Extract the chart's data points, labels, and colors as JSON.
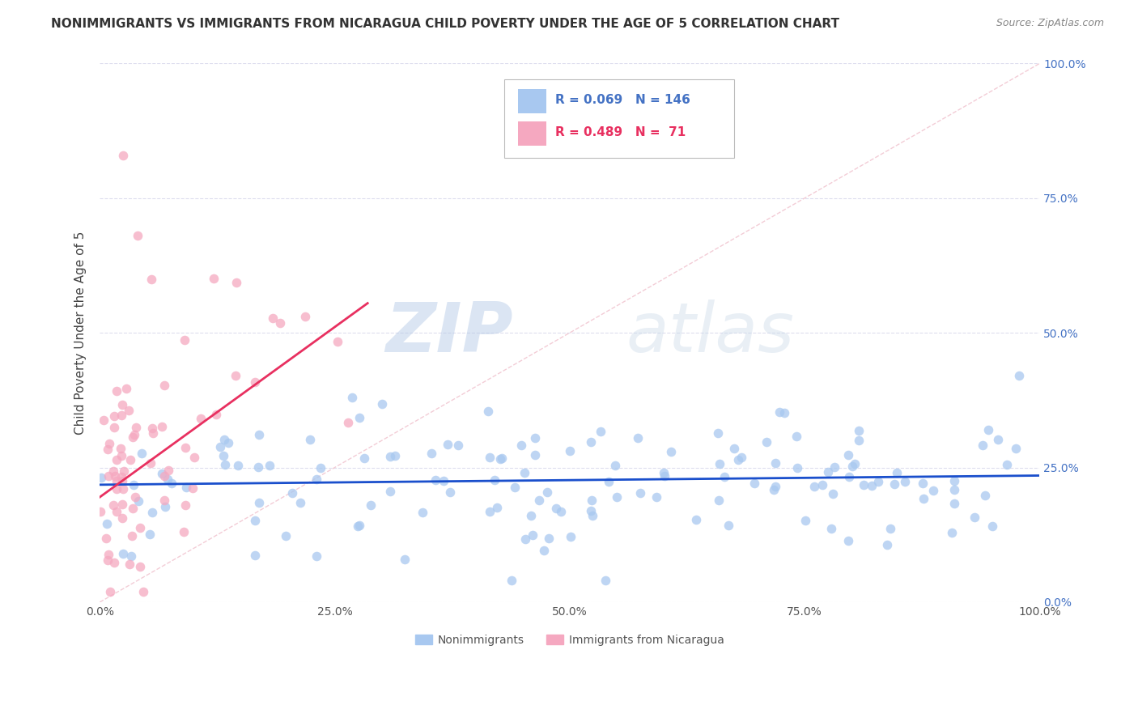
{
  "title": "NONIMMIGRANTS VS IMMIGRANTS FROM NICARAGUA CHILD POVERTY UNDER THE AGE OF 5 CORRELATION CHART",
  "source": "Source: ZipAtlas.com",
  "ylabel": "Child Poverty Under the Age of 5",
  "xlim": [
    0,
    1
  ],
  "ylim": [
    0,
    1
  ],
  "xticks": [
    0.0,
    0.25,
    0.5,
    0.75,
    1.0
  ],
  "yticks": [
    0.0,
    0.25,
    0.5,
    0.75,
    1.0
  ],
  "xtick_labels": [
    "0.0%",
    "25.0%",
    "50.0%",
    "75.0%",
    "100.0%"
  ],
  "ytick_labels": [
    "0.0%",
    "25.0%",
    "50.0%",
    "75.0%",
    "100.0%"
  ],
  "nonimmigrant_color": "#a8c8f0",
  "immigrant_color": "#f5a8c0",
  "trend_blue": "#1a4fcc",
  "trend_pink": "#e83060",
  "legend_R_blue": "R = 0.069",
  "legend_N_blue": "N = 146",
  "legend_R_pink": "R = 0.489",
  "legend_N_pink": "N =  71",
  "legend_label_blue": "Nonimmigrants",
  "legend_label_pink": "Immigrants from Nicaragua",
  "watermark_zip": "ZIP",
  "watermark_atlas": "atlas",
  "background_color": "#ffffff",
  "blue_trend_x": [
    0.0,
    1.0
  ],
  "blue_trend_y": [
    0.218,
    0.235
  ],
  "pink_trend_x": [
    0.0,
    0.285
  ],
  "pink_trend_y": [
    0.195,
    0.555
  ],
  "ref_line_x": [
    0.0,
    1.0
  ],
  "ref_line_y": [
    0.0,
    1.0
  ],
  "ref_line_color": "#f0c0cc",
  "grid_color": "#ddddee",
  "right_axis_color": "#4472c4",
  "title_color": "#333333",
  "source_color": "#888888"
}
